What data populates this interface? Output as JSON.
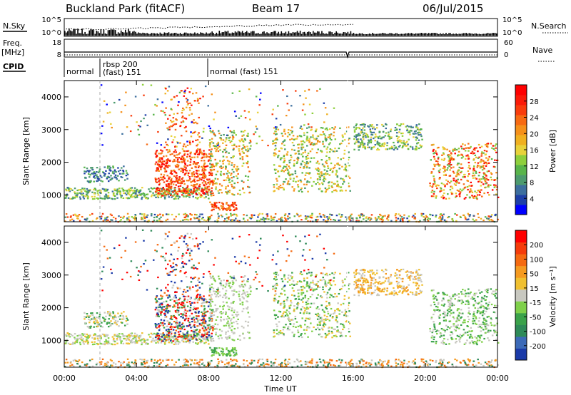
{
  "header": {
    "station": "Buckland Park (fitACF)",
    "beam": "Beam 17",
    "date": "06/Jul/2015"
  },
  "left_labels": {
    "nsky": "N.Sky",
    "freq_line1": "Freq.",
    "freq_line2": "[MHz]",
    "cpid": "CPID"
  },
  "right_labels": {
    "nsearch": "N.Search",
    "nave": "Nave"
  },
  "cpid_labels": {
    "normal": "normal",
    "rbsp": "rbsp 200",
    "fast151": "(fast) 151",
    "normal_fast": "normal (fast) 151"
  },
  "chart_data": [
    {
      "type": "line",
      "name": "noise-panel",
      "ylabel": "N.Sky",
      "y2label": "N.Search",
      "y_ticks": [
        "10^5",
        "10^0"
      ],
      "y2_ticks": [
        "10^5",
        "10^0"
      ]
    },
    {
      "type": "line",
      "name": "frequency-panel",
      "ylabel": "Freq. [MHz]",
      "y2label": "Nave",
      "y_ticks": [
        "18",
        "8"
      ],
      "y2_ticks": [
        "60",
        "0"
      ]
    },
    {
      "type": "heatmap",
      "name": "power-panel",
      "ylabel": "Slant Range [km]",
      "y_ticks": [
        "4000",
        "3000",
        "2000",
        "1000"
      ],
      "ylim": [
        180,
        4500
      ],
      "colorbar": {
        "label": "Power [dB]",
        "ticks": [
          "28",
          "24",
          "20",
          "16",
          "12",
          "8",
          "4"
        ],
        "colors": [
          "#0000ff",
          "#1e3fa8",
          "#3c6e9e",
          "#4c9a6e",
          "#58b44a",
          "#8ecf3c",
          "#e8d23a",
          "#f0b020",
          "#f5901a",
          "#f76a12",
          "#f93c0c",
          "#fb1a08",
          "#ff0000"
        ]
      }
    },
    {
      "type": "heatmap",
      "name": "velocity-panel",
      "ylabel": "Slant Range [km]",
      "y_ticks": [
        "4000",
        "3000",
        "2000",
        "1000"
      ],
      "ylim": [
        180,
        4500
      ],
      "colorbar": {
        "label": "Velocity [m s⁻¹]",
        "ticks": [
          "200",
          "100",
          "50",
          "15",
          "-15",
          "-50",
          "-100",
          "-200"
        ],
        "colors": [
          "#1a3aa8",
          "#3c6ab8",
          "#2e8a58",
          "#3aa24a",
          "#7fd04a",
          "#c8c8c0",
          "#f0c030",
          "#f59a20",
          "#f56a10",
          "#f53c0a",
          "#ff0000"
        ]
      }
    }
  ],
  "x_axis": {
    "label": "Time UT",
    "ticks": [
      "00:00",
      "04:00",
      "08:00",
      "12:00",
      "16:00",
      "20:00",
      "00:00"
    ]
  }
}
